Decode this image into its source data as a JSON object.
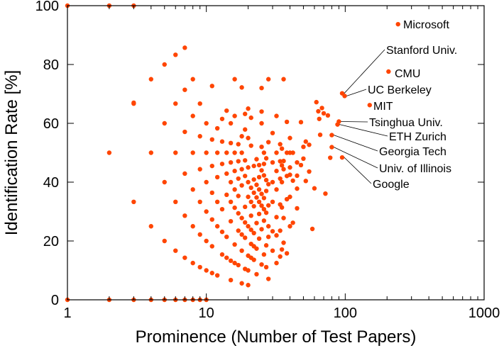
{
  "chart_data": {
    "type": "scatter",
    "title": "",
    "xlabel": "Prominence (Number of Test Papers)",
    "ylabel": "Identification Rate [%]",
    "xscale": "log",
    "xlim": [
      1,
      1000
    ],
    "ylim": [
      0,
      100
    ],
    "xticks": [
      1,
      10,
      100,
      1000
    ],
    "xtick_labels": [
      "1",
      "10",
      "100",
      "1000"
    ],
    "yticks": [
      0,
      20,
      40,
      60,
      80,
      100
    ],
    "ytick_labels": [
      "0",
      "20",
      "40",
      "60",
      "80",
      "100"
    ],
    "grid": false,
    "marker_color": "#ff4500",
    "points": [
      [
        1,
        0
      ],
      [
        1,
        100
      ],
      [
        2,
        0
      ],
      [
        2,
        50
      ],
      [
        2,
        100
      ],
      [
        3,
        0
      ],
      [
        3,
        33.3
      ],
      [
        3,
        66.7
      ],
      [
        3,
        67
      ],
      [
        3,
        100
      ],
      [
        4,
        0
      ],
      [
        4,
        25
      ],
      [
        4,
        50
      ],
      [
        4,
        75
      ],
      [
        5,
        0
      ],
      [
        5,
        20
      ],
      [
        5,
        40
      ],
      [
        5,
        60
      ],
      [
        5,
        80
      ],
      [
        6,
        0
      ],
      [
        6,
        16.7
      ],
      [
        6,
        33.3
      ],
      [
        6,
        50
      ],
      [
        6,
        66.7
      ],
      [
        6,
        83.3
      ],
      [
        7,
        0
      ],
      [
        7,
        14.3
      ],
      [
        7,
        28.6
      ],
      [
        7,
        42.9
      ],
      [
        7,
        57.1
      ],
      [
        7,
        71.4
      ],
      [
        7,
        85.7
      ],
      [
        8,
        0
      ],
      [
        8,
        12.5
      ],
      [
        8,
        25
      ],
      [
        8,
        37.5
      ],
      [
        8,
        50
      ],
      [
        8,
        62.5
      ],
      [
        8,
        75
      ],
      [
        9,
        0
      ],
      [
        9,
        11.1
      ],
      [
        9,
        22.2
      ],
      [
        9,
        33.3
      ],
      [
        9,
        44.4
      ],
      [
        9,
        55.6
      ],
      [
        9,
        66.7
      ],
      [
        10,
        0
      ],
      [
        10,
        10
      ],
      [
        10,
        20
      ],
      [
        10,
        30
      ],
      [
        10,
        40
      ],
      [
        10,
        50
      ],
      [
        10,
        60
      ],
      [
        11,
        9.1
      ],
      [
        11,
        18.2
      ],
      [
        11,
        27.3
      ],
      [
        11,
        36.4
      ],
      [
        11,
        45.5
      ],
      [
        11,
        54.5
      ],
      [
        11,
        72.7
      ],
      [
        12,
        8.3
      ],
      [
        12,
        25
      ],
      [
        12,
        33.3
      ],
      [
        12,
        41.7
      ],
      [
        12,
        50
      ],
      [
        12,
        58.3
      ],
      [
        13,
        15.4
      ],
      [
        13,
        23.1
      ],
      [
        13,
        30.8
      ],
      [
        13,
        46.2
      ],
      [
        13,
        53.8
      ],
      [
        13,
        61.5
      ],
      [
        14,
        14.3
      ],
      [
        14,
        21.4
      ],
      [
        14,
        35.7
      ],
      [
        14,
        42.9
      ],
      [
        14,
        50
      ],
      [
        14,
        64.3
      ],
      [
        15,
        6.7
      ],
      [
        15,
        13.3
      ],
      [
        15,
        26.7
      ],
      [
        15,
        33.3
      ],
      [
        15,
        40
      ],
      [
        15,
        46.7
      ],
      [
        15,
        53.3
      ],
      [
        15,
        60
      ],
      [
        16,
        12.5
      ],
      [
        16,
        18.8
      ],
      [
        16,
        31.3
      ],
      [
        16,
        37.5
      ],
      [
        16,
        43.8
      ],
      [
        16,
        50
      ],
      [
        16,
        62.5
      ],
      [
        16,
        75
      ],
      [
        17,
        11.8
      ],
      [
        17,
        23.5
      ],
      [
        17,
        29.4
      ],
      [
        17,
        35.3
      ],
      [
        17,
        41.2
      ],
      [
        17,
        47.1
      ],
      [
        17,
        52.9
      ],
      [
        18,
        5.6
      ],
      [
        18,
        16.7
      ],
      [
        18,
        22.2
      ],
      [
        18,
        27.8
      ],
      [
        18,
        38.9
      ],
      [
        18,
        44.4
      ],
      [
        18,
        50
      ],
      [
        18,
        55.6
      ],
      [
        18,
        72.2
      ],
      [
        19,
        10.5
      ],
      [
        19,
        21.1
      ],
      [
        19,
        26.3
      ],
      [
        19,
        31.6
      ],
      [
        19,
        42.1
      ],
      [
        19,
        47.4
      ],
      [
        19,
        57.9
      ],
      [
        19,
        63.2
      ],
      [
        20,
        5
      ],
      [
        20,
        10
      ],
      [
        20,
        15
      ],
      [
        20,
        25
      ],
      [
        20,
        35
      ],
      [
        20,
        40
      ],
      [
        20,
        45
      ],
      [
        20,
        55
      ],
      [
        20,
        65
      ],
      [
        21,
        14.3
      ],
      [
        21,
        19
      ],
      [
        21,
        23.8
      ],
      [
        21,
        28.6
      ],
      [
        21,
        33.3
      ],
      [
        21,
        38.1
      ],
      [
        21,
        52.4
      ],
      [
        21,
        61.9
      ],
      [
        22,
        13.6
      ],
      [
        22,
        18.2
      ],
      [
        22,
        22.7
      ],
      [
        22,
        31.8
      ],
      [
        22,
        36.4
      ],
      [
        22,
        40.9
      ],
      [
        22,
        45.5
      ],
      [
        23,
        8.7
      ],
      [
        23,
        17.4
      ],
      [
        23,
        26.1
      ],
      [
        23,
        34.8
      ],
      [
        23,
        39.1
      ],
      [
        23,
        47.8
      ],
      [
        24,
        20.8
      ],
      [
        24,
        29.2
      ],
      [
        24,
        33.3
      ],
      [
        24,
        37.5
      ],
      [
        24,
        41.7
      ],
      [
        24,
        45.8
      ],
      [
        25,
        12
      ],
      [
        25,
        24
      ],
      [
        25,
        32
      ],
      [
        25,
        36
      ],
      [
        25,
        44
      ],
      [
        25,
        52
      ],
      [
        25,
        60
      ],
      [
        25,
        64
      ],
      [
        25,
        72
      ],
      [
        26,
        15.4
      ],
      [
        26,
        26.9
      ],
      [
        26,
        30.8
      ],
      [
        26,
        34.6
      ],
      [
        26,
        42.3
      ],
      [
        26,
        46.2
      ],
      [
        26,
        50
      ],
      [
        27,
        11.1
      ],
      [
        27,
        18.5
      ],
      [
        27,
        29.6
      ],
      [
        27,
        37
      ],
      [
        27,
        40.7
      ],
      [
        27,
        48.1
      ],
      [
        28,
        7.1
      ],
      [
        28,
        21.4
      ],
      [
        28,
        25
      ],
      [
        28,
        32.1
      ],
      [
        28,
        39.3
      ],
      [
        28,
        53.6
      ],
      [
        28,
        75
      ],
      [
        30,
        16.7
      ],
      [
        30,
        23.3
      ],
      [
        30,
        33.3
      ],
      [
        30,
        40
      ],
      [
        30,
        46.7
      ],
      [
        30,
        56.7
      ],
      [
        32,
        12.5
      ],
      [
        32,
        21.9
      ],
      [
        32,
        28.1
      ],
      [
        32,
        37.5
      ],
      [
        32,
        43.8
      ],
      [
        32,
        50
      ],
      [
        32,
        62.5
      ],
      [
        34,
        14.7
      ],
      [
        34,
        23.5
      ],
      [
        34,
        32.4
      ],
      [
        34,
        41.2
      ],
      [
        34,
        47.1
      ],
      [
        34,
        52.9
      ],
      [
        35,
        17.1
      ],
      [
        35,
        31.4
      ],
      [
        35,
        40
      ],
      [
        35,
        45.7
      ],
      [
        35,
        51.4
      ],
      [
        36,
        19.4
      ],
      [
        36,
        27.8
      ],
      [
        36,
        44.4
      ],
      [
        36,
        47.2
      ],
      [
        36,
        75
      ],
      [
        38,
        15.8
      ],
      [
        38,
        34.2
      ],
      [
        38,
        42.1
      ],
      [
        38,
        50
      ],
      [
        38,
        60.5
      ],
      [
        40,
        25
      ],
      [
        40,
        35
      ],
      [
        40,
        42.5
      ],
      [
        40,
        45
      ],
      [
        40,
        50
      ],
      [
        40,
        55
      ],
      [
        42,
        26.2
      ],
      [
        42,
        40.5
      ],
      [
        42,
        50
      ],
      [
        45,
        31.1
      ],
      [
        45,
        37.8
      ],
      [
        45,
        42.2
      ],
      [
        45,
        46.7
      ],
      [
        48,
        45.8
      ],
      [
        48,
        60.4
      ],
      [
        50,
        48
      ],
      [
        50,
        52
      ],
      [
        52,
        40.4
      ],
      [
        52,
        53.8
      ],
      [
        55,
        43.6
      ],
      [
        55,
        52.7
      ],
      [
        58,
        24.1
      ],
      [
        60,
        37.9
      ],
      [
        62,
        67.2
      ],
      [
        64,
        64.1
      ],
      [
        65,
        61.5
      ],
      [
        66,
        56.1
      ],
      [
        68,
        65.2
      ],
      [
        70,
        63.4
      ],
      [
        72,
        36.1
      ],
      [
        75,
        62.7
      ],
      [
        78,
        48.3
      ],
      [
        80,
        56
      ],
      [
        80,
        51.9
      ],
      [
        88,
        59.6
      ],
      [
        90,
        60.6
      ],
      [
        95,
        48.4
      ],
      [
        95,
        70.2
      ],
      [
        99,
        69.3
      ],
      [
        150,
        66.2
      ],
      [
        205,
        77.6
      ],
      [
        240,
        93.7
      ]
    ],
    "annotations": [
      {
        "text": "Microsoft",
        "x": 240,
        "y": 93.7,
        "connector": false
      },
      {
        "text": "Stanford Univ.",
        "x": 95,
        "y": 70.2,
        "connector": true
      },
      {
        "text": "CMU",
        "x": 205,
        "y": 77.6,
        "connector": false
      },
      {
        "text": "UC Berkeley",
        "x": 99,
        "y": 69.3,
        "connector": true
      },
      {
        "text": "MIT",
        "x": 150,
        "y": 66.2,
        "connector": false
      },
      {
        "text": "Tsinghua Univ.",
        "x": 90,
        "y": 60.6,
        "connector": true
      },
      {
        "text": "ETH Zurich",
        "x": 88,
        "y": 59.6,
        "connector": true
      },
      {
        "text": "Georgia Tech",
        "x": 80,
        "y": 56,
        "connector": true
      },
      {
        "text": "Univ. of Illinois",
        "x": 80,
        "y": 51.9,
        "connector": true
      },
      {
        "text": "Google",
        "x": 95,
        "y": 48.4,
        "connector": true
      }
    ]
  }
}
